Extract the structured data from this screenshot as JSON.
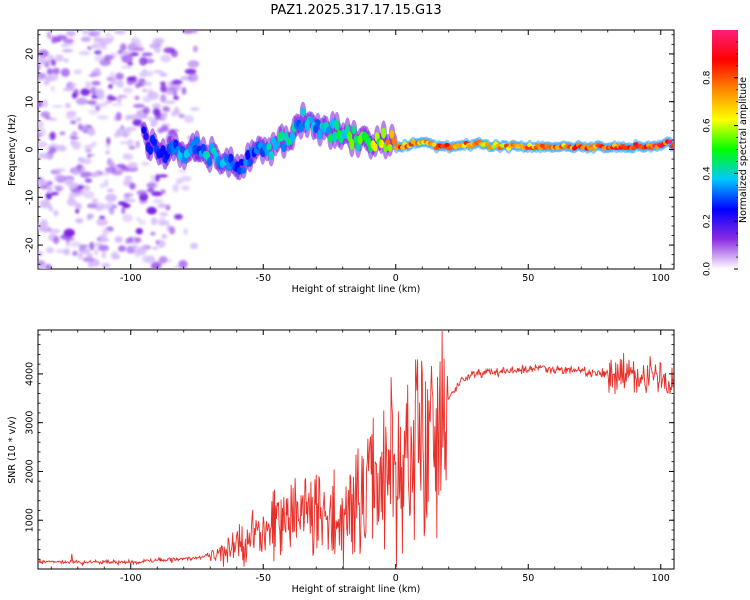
{
  "title": "PAZ1.2025.317.17.15.G13",
  "colors": {
    "background": "#ffffff",
    "axis": "#000000",
    "snr_line": "#e8302a",
    "spectrum_purple": "#8a2be2",
    "spectrum_light": "#d9b8ff"
  },
  "chart_data": [
    {
      "type": "heatmap",
      "title": "PAZ1.2025.317.17.15.G13",
      "xlabel": "Height of straight line (km)",
      "ylabel": "Frequency (Hz)",
      "xlim": [
        -135,
        105
      ],
      "ylim": [
        -25,
        25
      ],
      "xticks": [
        -100,
        -50,
        0,
        50,
        100
      ],
      "yticks": [
        -20,
        -10,
        0,
        10,
        20
      ],
      "xtick_labels": [
        "-100",
        "-50",
        "0",
        "50",
        "100"
      ],
      "ytick_labels": [
        "-20",
        "-10",
        "0",
        "10",
        "20"
      ],
      "colorbar": {
        "label": "Normalized spectral amplitude",
        "range": [
          0,
          1
        ],
        "ticks": [
          0.0,
          0.2,
          0.4,
          0.6,
          0.8
        ],
        "tick_labels": [
          "0.0",
          "0.2",
          "0.4",
          "0.6",
          "0.8"
        ],
        "colormap": [
          "#ffffff",
          "#8a2be2",
          "#0000ff",
          "#00c8ff",
          "#00ff00",
          "#ffff00",
          "#ff8800",
          "#ff0000",
          "#ff1f7a"
        ]
      },
      "ridge": {
        "x": [
          -95,
          -90,
          -85,
          -80,
          -75,
          -70,
          -65,
          -60,
          -55,
          -50,
          -45,
          -40,
          -35,
          -30,
          -25,
          -20,
          -15,
          -10,
          -5,
          0,
          5,
          10,
          20,
          30,
          50,
          70,
          90,
          105
        ],
        "frequency": [
          2,
          0.5,
          0,
          -0.5,
          0,
          -1.5,
          -3,
          -4,
          -2,
          0,
          1,
          3,
          6,
          5,
          4,
          3,
          2.5,
          2,
          1.5,
          0.5,
          1,
          1.5,
          0.5,
          1,
          0.5,
          0.5,
          0.5,
          1
        ],
        "amplitude": [
          0.25,
          0.3,
          0.3,
          0.35,
          0.3,
          0.4,
          0.35,
          0.3,
          0.3,
          0.35,
          0.4,
          0.4,
          0.35,
          0.35,
          0.4,
          0.45,
          0.5,
          0.55,
          0.6,
          0.8,
          0.75,
          0.7,
          0.85,
          0.7,
          0.75,
          0.8,
          0.85,
          0.9
        ]
      },
      "noise_region_x": [
        -135,
        -75
      ]
    },
    {
      "type": "line",
      "xlabel": "Height of straight line (km)",
      "ylabel": "SNR (10 * v/v)",
      "xlim": [
        -135,
        105
      ],
      "ylim": [
        0,
        4900
      ],
      "xticks": [
        -100,
        -50,
        0,
        50,
        100
      ],
      "yticks": [
        1000,
        2000,
        3000,
        4000
      ],
      "xtick_labels": [
        "-100",
        "-50",
        "0",
        "50",
        "100"
      ],
      "ytick_labels": [
        "1000",
        "2000",
        "3000",
        "4000"
      ],
      "series": [
        {
          "name": "SNR",
          "x": [
            -135,
            -120,
            -100,
            -90,
            -80,
            -75,
            -70,
            -65,
            -60,
            -55,
            -50,
            -45,
            -40,
            -35,
            -30,
            -25,
            -20,
            -15,
            -10,
            -5,
            0,
            5,
            10,
            15,
            20,
            25,
            30,
            40,
            50,
            60,
            70,
            80,
            90,
            100,
            105
          ],
          "y": [
            150,
            140,
            140,
            180,
            200,
            230,
            300,
            400,
            550,
            700,
            900,
            1100,
            1200,
            1300,
            1300,
            1200,
            1400,
            1600,
            1900,
            2200,
            2600,
            2700,
            2900,
            3100,
            3500,
            3900,
            4000,
            4050,
            4100,
            4100,
            4050,
            4000,
            3950,
            3900,
            3850
          ]
        }
      ]
    }
  ]
}
